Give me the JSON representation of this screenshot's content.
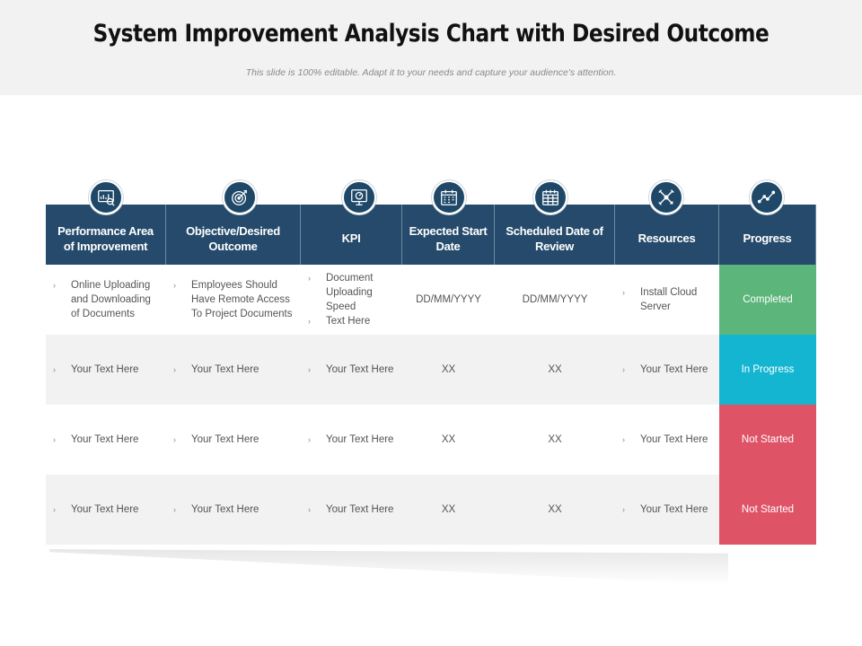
{
  "title": "System Improvement Analysis Chart with Desired Outcome",
  "subtitle": "This slide is 100% editable. Adapt it to your needs and capture your audience's attention.",
  "icons": [
    "analytics-icon",
    "target-icon",
    "monitor-gauge-icon",
    "calendar-icon",
    "calendar-grid-icon",
    "tools-icon",
    "trend-line-icon"
  ],
  "colors": {
    "header": "#254a6b",
    "completed": "#5cb67b",
    "in_progress": "#13b5d1",
    "not_started": "#df5367"
  },
  "table": {
    "headers": [
      "Performance Area of Improvement",
      "Objective/Desired Outcome",
      "KPI",
      "Expected Start Date",
      "Scheduled Date of Review",
      "Resources",
      "Progress"
    ],
    "rows": [
      {
        "area": "Online Uploading and Downloading of Documents",
        "objective": "Employees Should Have Remote Access To Project Documents",
        "kpi": [
          "Document Uploading Speed",
          "Text Here"
        ],
        "start": "DD/MM/YYYY",
        "review": "DD/MM/YYYY",
        "resources": "Install Cloud Server",
        "progress": "Completed"
      },
      {
        "area": "Your Text Here",
        "objective": "Your Text Here",
        "kpi": [
          "Your Text Here"
        ],
        "start": "XX",
        "review": "XX",
        "resources": "Your Text Here",
        "progress": "In Progress"
      },
      {
        "area": "Your Text Here",
        "objective": "Your Text Here",
        "kpi": [
          "Your Text Here"
        ],
        "start": "XX",
        "review": "XX",
        "resources": "Your Text Here",
        "progress": "Not Started"
      },
      {
        "area": "Your Text Here",
        "objective": "Your Text Here",
        "kpi": [
          "Your Text Here"
        ],
        "start": "XX",
        "review": "XX",
        "resources": "Your Text Here",
        "progress": "Not Started"
      }
    ]
  }
}
